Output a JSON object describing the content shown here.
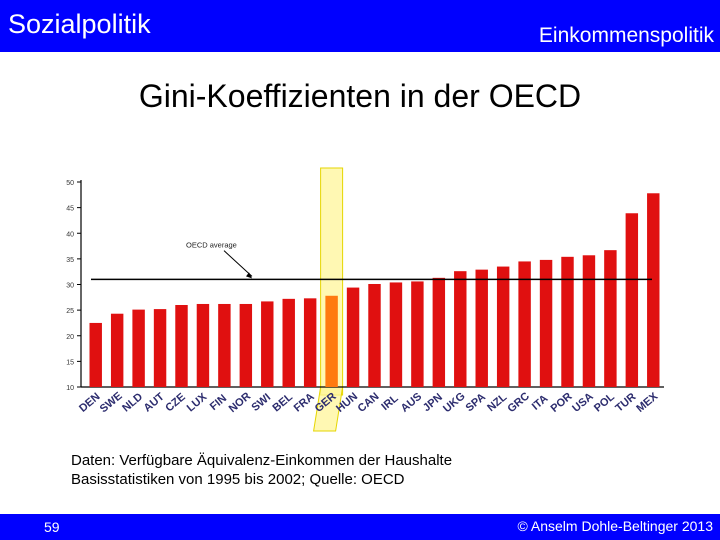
{
  "header": {
    "left_title": "Sozialpolitik",
    "right_title": "Einkommenspolitik"
  },
  "slide_title": "Gini-Koeffizienten in der OECD",
  "colors": {
    "bar_bar": "#0000ff",
    "bar_fill": "#e01010",
    "highlight_fill": "#ff7a10",
    "highlight_box": "#fff59a"
  },
  "chart_data": {
    "type": "bar",
    "categories": [
      "DEN",
      "SWE",
      "NLD",
      "AUT",
      "CZE",
      "LUX",
      "FIN",
      "NOR",
      "SWI",
      "BEL",
      "FRA",
      "GER",
      "HUN",
      "CAN",
      "IRL",
      "AUS",
      "JPN",
      "UKG",
      "SPA",
      "NZL",
      "GRC",
      "ITA",
      "POR",
      "USA",
      "POL",
      "TUR",
      "MEX"
    ],
    "values": [
      22.5,
      24.3,
      25.1,
      25.2,
      26.0,
      26.2,
      26.2,
      26.2,
      26.7,
      27.2,
      27.3,
      27.8,
      29.4,
      30.1,
      30.4,
      30.6,
      31.3,
      32.6,
      32.9,
      33.5,
      34.5,
      34.8,
      35.4,
      35.7,
      36.7,
      43.9,
      47.8
    ],
    "highlight": "GER",
    "reference_line": {
      "label": "OECD average",
      "value": 31.0
    },
    "yticks": [
      10,
      15,
      20,
      25,
      30,
      35,
      40,
      45,
      50
    ],
    "ylim": [
      10,
      50
    ],
    "title": "",
    "xlabel": "",
    "ylabel": ""
  },
  "source_note": {
    "line1": "Daten: Verfügbare Äquivalenz-Einkommen der Haushalte",
    "line2": "Basisstatistiken von 1995 bis 2002; Quelle: OECD"
  },
  "footer": {
    "page_number": "59",
    "copyright": "© Anselm Dohle-Beltinger 2013"
  }
}
